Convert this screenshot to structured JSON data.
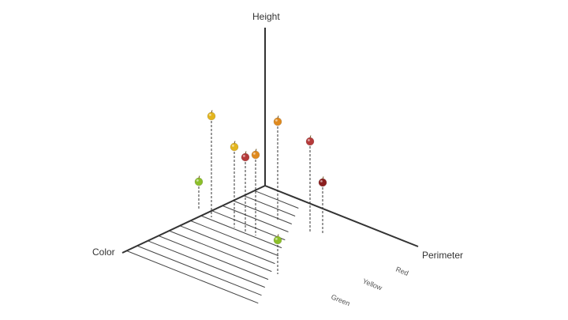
{
  "axes": {
    "vertical_label": "Height",
    "left_label": "Color",
    "right_label": "Perimeter"
  },
  "color_categories": [
    "Green",
    "Yellow",
    "Red"
  ],
  "colors": {
    "axis": "#333333",
    "grid": "#444444",
    "drop_line": "#333333",
    "apple_green": "#8cbf2a",
    "apple_yellow": "#e3b51e",
    "apple_orange": "#e08a1e",
    "apple_red": "#b53a3a",
    "apple_dark_red": "#8b1e1e"
  },
  "apples": [
    {
      "color": "apple_yellow",
      "stem": "#6b4f1d"
    },
    {
      "color": "apple_green",
      "stem": "#6b4f1d"
    },
    {
      "color": "apple_yellow",
      "stem": "#6b4f1d"
    },
    {
      "color": "apple_red",
      "stem": "#6b4f1d"
    },
    {
      "color": "apple_orange",
      "stem": "#6b4f1d"
    },
    {
      "color": "apple_orange",
      "stem": "#6b4f1d"
    },
    {
      "color": "apple_red",
      "stem": "#6b4f1d"
    },
    {
      "color": "apple_dark_red",
      "stem": "#6b4f1d"
    },
    {
      "color": "apple_green",
      "stem": "#6b4f1d"
    }
  ]
}
